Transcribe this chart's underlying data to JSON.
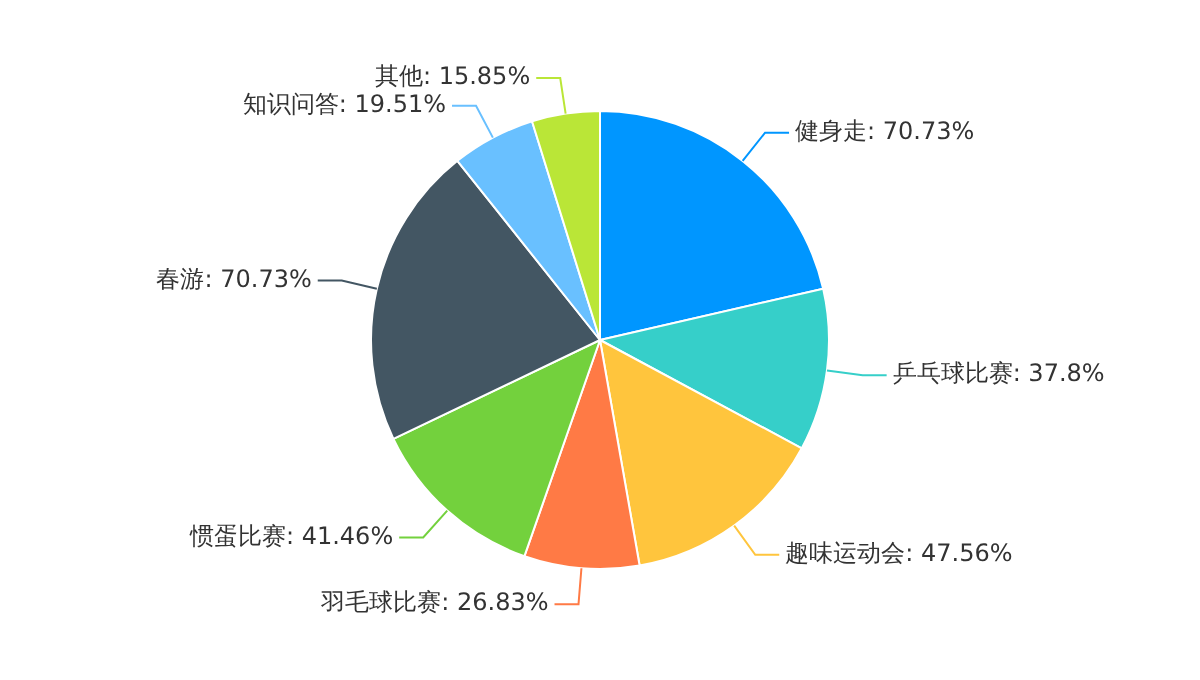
{
  "chart_data": {
    "type": "pie",
    "categories": [
      "健身走",
      "乒乓球比赛",
      "趣味运动会",
      "羽毛球比赛",
      "惯蛋比赛",
      "春游",
      "知识问答",
      "其他"
    ],
    "values": [
      70.73,
      37.8,
      47.56,
      26.83,
      41.46,
      70.73,
      19.51,
      15.85
    ],
    "value_labels": [
      "70.73%",
      "37.8%",
      "47.56%",
      "26.83%",
      "41.46%",
      "70.73%",
      "19.51%",
      "15.85%"
    ],
    "colors": [
      "#0096ff",
      "#36cfc9",
      "#ffc53d",
      "#ff7a45",
      "#73d13d",
      "#435663",
      "#69c0ff",
      "#bae637"
    ],
    "legend": false
  }
}
